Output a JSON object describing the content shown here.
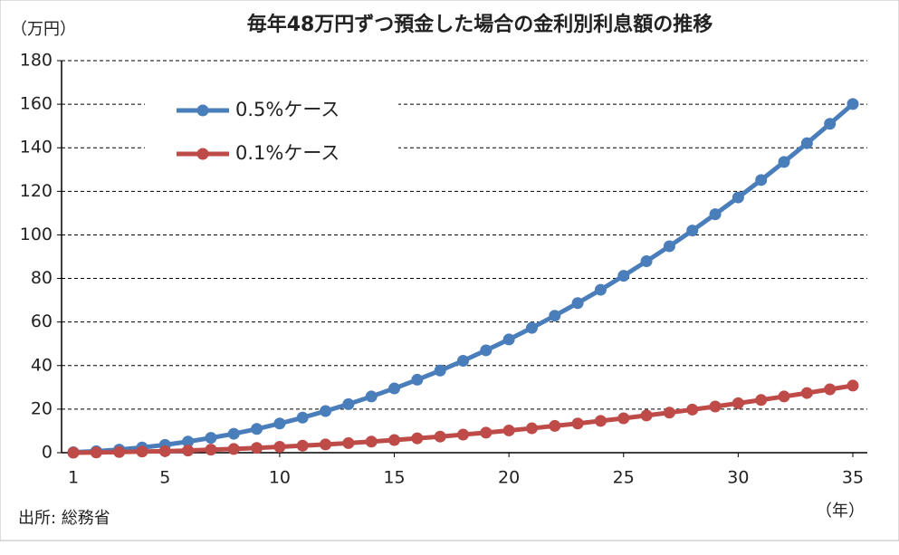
{
  "chart_data": {
    "type": "line",
    "title": "毎年48万円ずつ預金した場合の金利別利息額の推移",
    "y_unit": "（万円）",
    "x_unit": "（年）",
    "source": "出所: 総務省",
    "x": [
      1,
      2,
      3,
      4,
      5,
      6,
      7,
      8,
      9,
      10,
      11,
      12,
      13,
      14,
      15,
      16,
      17,
      18,
      19,
      20,
      21,
      22,
      23,
      24,
      25,
      26,
      27,
      28,
      29,
      30,
      31,
      32,
      33,
      34,
      35
    ],
    "series": [
      {
        "name": "0.5%ケース",
        "color": "#4a7ebb",
        "values": [
          0.2,
          0.7,
          1.4,
          2.4,
          3.6,
          5.1,
          6.8,
          8.7,
          10.9,
          13.4,
          16.1,
          19.1,
          22.3,
          25.8,
          29.5,
          33.5,
          37.7,
          42.2,
          47.0,
          52.0,
          57.3,
          62.9,
          68.7,
          74.8,
          81.2,
          87.9,
          94.8,
          102.0,
          109.5,
          117.2,
          125.2,
          133.5,
          142.1,
          151.0,
          160.1
        ]
      },
      {
        "name": "0.1%ケース",
        "color": "#be4b48",
        "values": [
          0.0,
          0.1,
          0.3,
          0.5,
          0.7,
          1.0,
          1.4,
          1.7,
          2.2,
          2.7,
          3.2,
          3.8,
          4.4,
          5.1,
          5.8,
          6.6,
          7.4,
          8.3,
          9.2,
          10.2,
          11.2,
          12.3,
          13.4,
          14.6,
          15.8,
          17.1,
          18.4,
          19.8,
          21.2,
          22.7,
          24.2,
          25.8,
          27.4,
          29.1,
          30.8
        ]
      }
    ],
    "xlim": [
      1,
      35
    ],
    "xticks": [
      1,
      5,
      10,
      15,
      20,
      25,
      30,
      35
    ],
    "ylim": [
      0,
      180
    ],
    "yticks": [
      0,
      20,
      40,
      60,
      80,
      100,
      120,
      140,
      160,
      180
    ],
    "grid": true,
    "legend": "upper-left"
  }
}
